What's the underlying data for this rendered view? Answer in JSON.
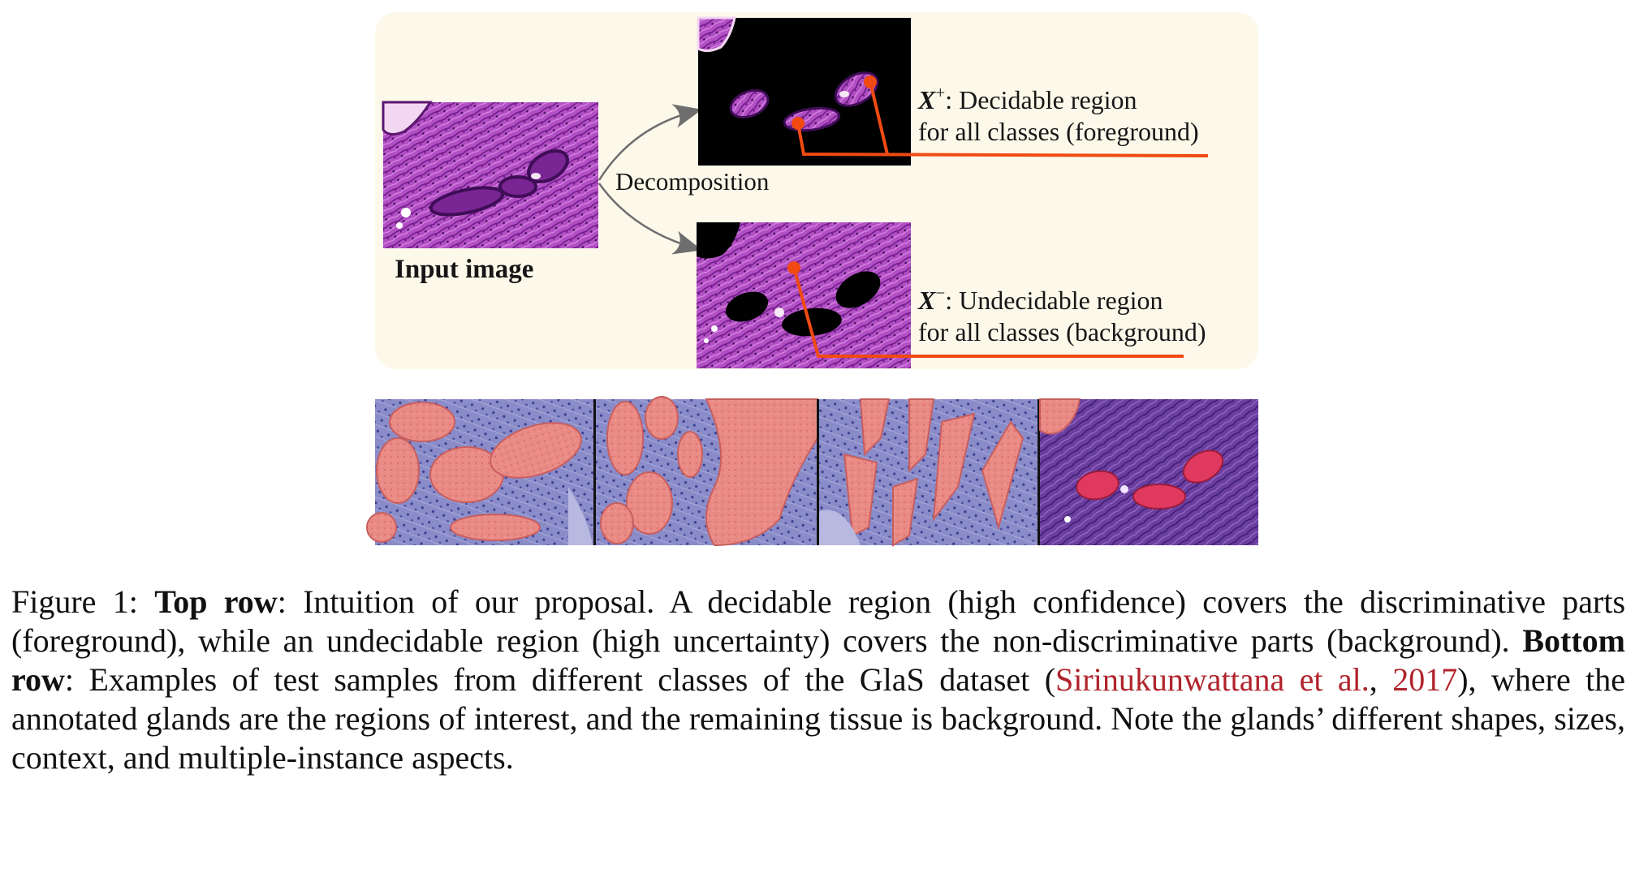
{
  "figure": {
    "input_label": "Input image",
    "decomposition_label": "Decomposition",
    "foreground": {
      "symbol": "X",
      "sup": "+",
      "line1_rest": ": Decidable region",
      "line2": "for all classes (foreground)"
    },
    "background": {
      "symbol": "X",
      "sup": "−",
      "line1_rest": ": Undecidable region",
      "line2": "for all classes (background)"
    },
    "colors": {
      "panel": "#fcf9ea",
      "annotation": "#f04a12",
      "tissue": "#b24fc4",
      "gland_overlay": "#f07a78",
      "arrow": "#6e6e6e"
    }
  },
  "caption": {
    "prefix": "Figure 1: ",
    "top_row_label": "Top row",
    "part1": ": Intuition of our proposal. A decidable region (high confidence) covers the discriminative parts (foreground), while an undecidable region (high uncertainty) covers the non-discriminative parts (background). ",
    "bottom_row_label": "Bottom row",
    "part2": ": Examples of test samples from different classes of the GlaS dataset (",
    "cite_authors": "Sirinukunwattana et al.",
    "cite_sep": ", ",
    "cite_year": "2017",
    "part3": "), where the annotated glands are the regions of interest, and the remaining tissue is background. Note the glands’ different shapes, sizes, context, and multiple-instance aspects."
  }
}
